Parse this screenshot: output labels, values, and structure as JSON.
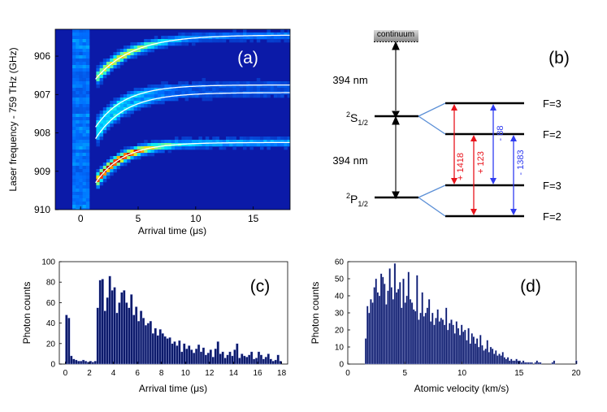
{
  "chart_data": [
    {
      "panel": "(a)",
      "type": "heatmap",
      "xlabel_prefix": "Arrival time (",
      "xlabel_unit": "μs",
      "xlabel_suffix": ")",
      "ylabel": "Laser frequency  - 759 THz (GHz)",
      "x_ticks": [
        "0",
        "5",
        "10",
        "15"
      ],
      "y_ticks": [
        "906",
        "907",
        "908",
        "909",
        "910"
      ],
      "xlim": [
        -2.2,
        18.2
      ],
      "ylim": [
        910,
        905.3
      ],
      "fit_curves": [
        {
          "f_inf": 905.45,
          "amp": 1.15,
          "tau": 3.2
        },
        {
          "f_inf": 906.75,
          "amp": 1.1,
          "tau": 2.5
        },
        {
          "f_inf": 906.95,
          "amp": 1.2,
          "tau": 2.6
        },
        {
          "f_inf": 908.25,
          "amp": 1.05,
          "tau": 2.4
        }
      ]
    },
    {
      "panel": "(c)",
      "type": "bar",
      "xlabel_prefix": "Arrival time (",
      "xlabel_unit": "μs",
      "xlabel_suffix": ")",
      "ylabel": "Photon counts",
      "xlim": [
        -0.5,
        18.5
      ],
      "ylim": [
        0,
        100
      ],
      "x_ticks": [
        "0",
        "2",
        "4",
        "6",
        "8",
        "10",
        "12",
        "14",
        "16",
        "18"
      ],
      "y_ticks": [
        "0",
        "20",
        "40",
        "60",
        "80",
        "100"
      ],
      "bin_start": 0,
      "bin_width": 0.2,
      "values": [
        48,
        45,
        8,
        5,
        4,
        3,
        3,
        4,
        3,
        2,
        3,
        2,
        3,
        55,
        82,
        83,
        52,
        65,
        86,
        72,
        75,
        50,
        60,
        70,
        72,
        60,
        55,
        68,
        48,
        56,
        42,
        52,
        45,
        38,
        40,
        42,
        30,
        35,
        28,
        34,
        30,
        27,
        25,
        26,
        20,
        22,
        18,
        23,
        12,
        20,
        15,
        18,
        14,
        11,
        15,
        19,
        12,
        16,
        9,
        11,
        14,
        7,
        15,
        22,
        10,
        12,
        6,
        9,
        12,
        8,
        14,
        20,
        6,
        10,
        8,
        7,
        9,
        12,
        5,
        6,
        12,
        9,
        5,
        7,
        10,
        5,
        3,
        4,
        9,
        3
      ]
    },
    {
      "panel": "(d)",
      "type": "bar",
      "xlabel": "Atomic velocity (km/s)",
      "ylabel": "Photon counts",
      "xlim": [
        0,
        20
      ],
      "ylim": [
        0,
        60
      ],
      "x_ticks": [
        "0",
        "5",
        "10",
        "15",
        "20"
      ],
      "y_ticks": [
        "0",
        "10",
        "20",
        "30",
        "40",
        "50",
        "60"
      ],
      "bin_start": 1.5,
      "bin_width": 0.15,
      "values": [
        15,
        34,
        30,
        38,
        36,
        45,
        50,
        42,
        40,
        53,
        51,
        47,
        35,
        43,
        56,
        45,
        38,
        59,
        42,
        44,
        48,
        33,
        50,
        36,
        40,
        54,
        38,
        36,
        32,
        31,
        52,
        26,
        30,
        42,
        28,
        30,
        33,
        38,
        25,
        30,
        23,
        27,
        32,
        25,
        27,
        26,
        23,
        33,
        20,
        24,
        26,
        23,
        18,
        25,
        21,
        17,
        23,
        19,
        20,
        14,
        21,
        12,
        18,
        16,
        12,
        15,
        10,
        17,
        11,
        8,
        9,
        14,
        7,
        10,
        9,
        6,
        8,
        5,
        6,
        5,
        7,
        4,
        3,
        4,
        2,
        3,
        2,
        2,
        3,
        2,
        2,
        1,
        2,
        1,
        1,
        1,
        1,
        1,
        0,
        1,
        2,
        1,
        1,
        0,
        0,
        0,
        0,
        0,
        0,
        1,
        2,
        0,
        0,
        0,
        0,
        0,
        0,
        0,
        0,
        0,
        0,
        0,
        0,
        2
      ]
    }
  ],
  "diagram": {
    "panel": "(b)",
    "continuum": "continuum",
    "wavelength_upper": "394 nm",
    "wavelength_lower": "394 nm",
    "state_upper": {
      "sup": "2",
      "base": "S",
      "sub": "1/2"
    },
    "state_lower": {
      "sup": "2",
      "base": "P",
      "sub": "1/2"
    },
    "levels": [
      "F=3",
      "F=2",
      "F=3",
      "F=2"
    ],
    "shifts": [
      {
        "label": "+ 1418",
        "color": "#e8141c"
      },
      {
        "label": "+ 123",
        "color": "#e8141c"
      },
      {
        "label": "- 88",
        "color": "#2f3bf0"
      },
      {
        "label": "- 1383",
        "color": "#2f3bf0"
      }
    ]
  },
  "colors": {
    "bar_fill": "#0c1a6b",
    "bar_edge": "#c9d0ff",
    "heat_bg": "#0b1aa8"
  }
}
